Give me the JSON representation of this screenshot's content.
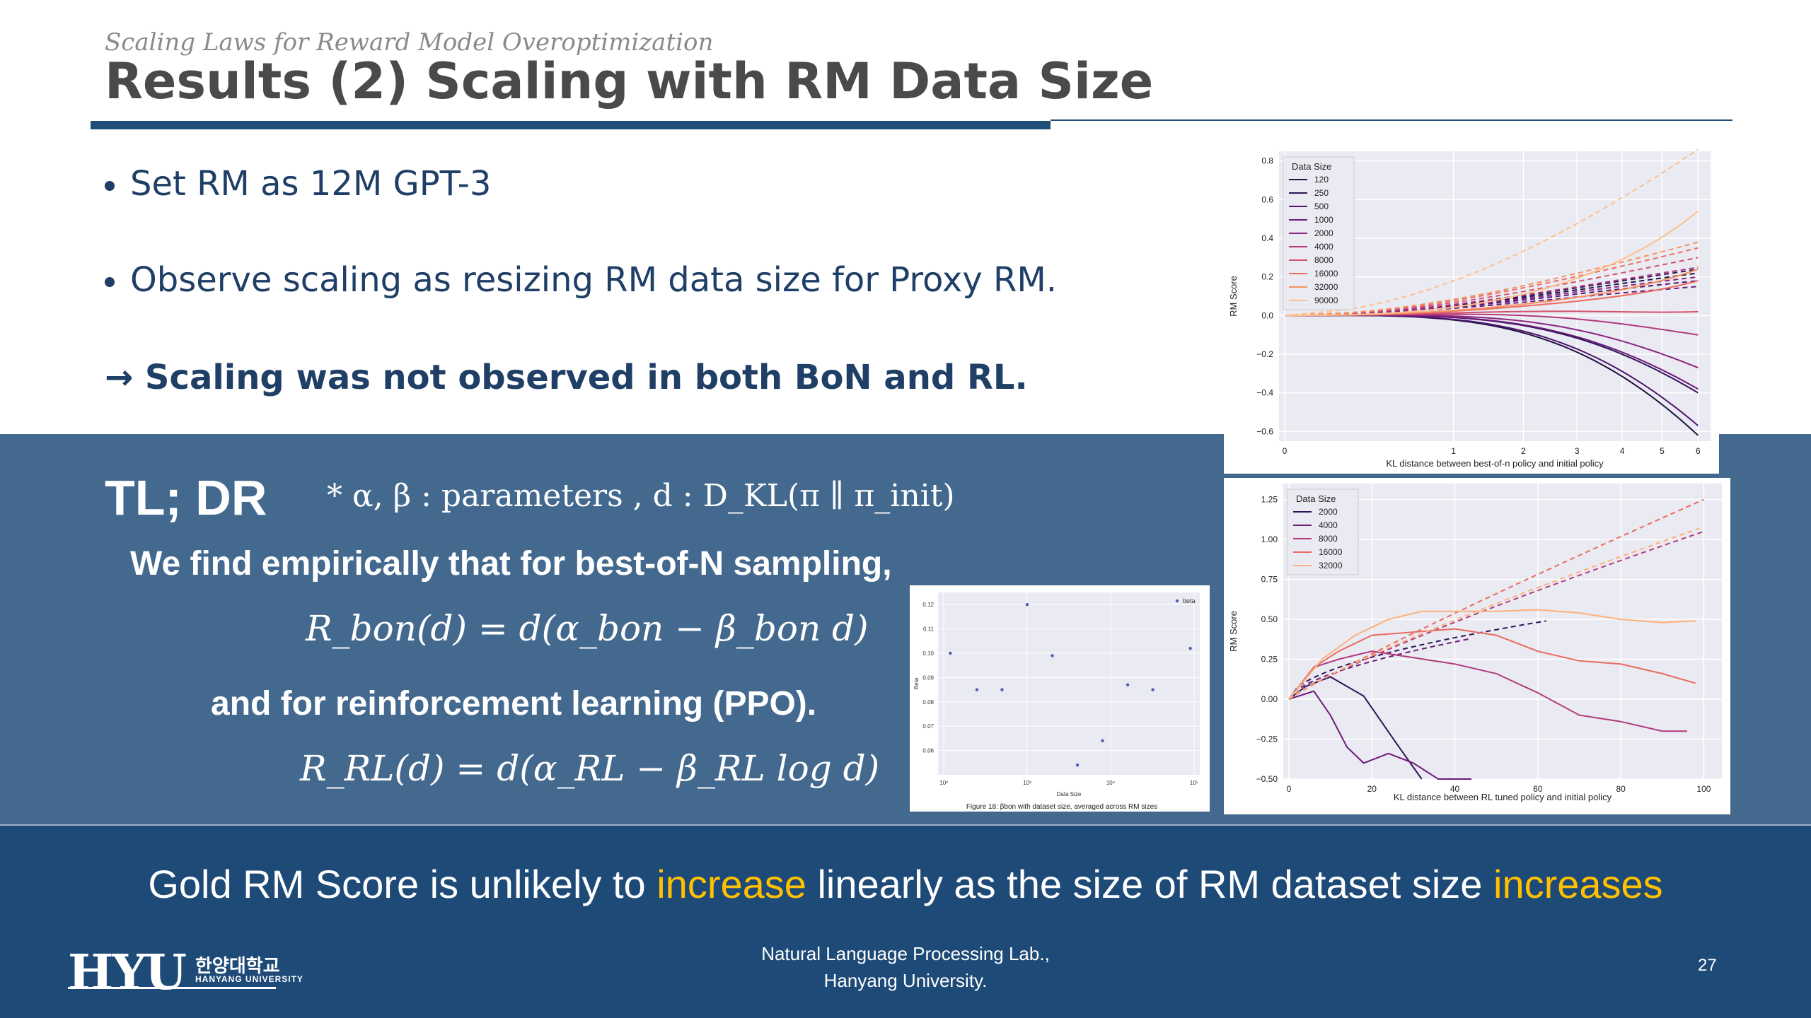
{
  "slide": {
    "subtitle": "Scaling Laws for Reward Model Overoptimization",
    "title": "Results (2) Scaling with RM Data Size",
    "bullets": [
      "Set RM as 12M GPT-3",
      "Observe scaling as resizing RM data size for Proxy RM."
    ],
    "conclusion": "→ Scaling was not observed in both BoN and RL.",
    "tldr_label": "TL; DR",
    "params_note": "* α, β : parameters , d : D_KL(π ∥ π_init)",
    "find_text": "We find empirically that for best-of-N sampling,",
    "eq_bon": "R_bon(d) = d(α_bon − β_bon d)",
    "and_text": "and for reinforcement learning (PPO).",
    "eq_rl": "R_RL(d) = d(α_RL − β_RL log d)",
    "gold_pre": "Gold RM Score is unlikely to ",
    "gold_hl1": "increase",
    "gold_mid": " linearly as the size of RM dataset size ",
    "gold_hl2": "increases",
    "footer_line1": "Natural Language Processing Lab.,",
    "footer_line2": "Hanyang University.",
    "page_number": "27",
    "logo_text": "HYU",
    "logo_kor": "한양대학교",
    "logo_eng": "HANYANG UNIVERSITY"
  },
  "colors": {
    "navy": "#1f4e79",
    "mid_band": "#44698f",
    "bottom_band": "#1e4a77",
    "highlight": "#ffc000"
  },
  "chart_data": [
    {
      "type": "line",
      "title": "",
      "xlabel": "KL distance between best-of-n policy and initial policy",
      "ylabel": "RM Score",
      "x_ticks": [
        "0",
        "1",
        "2",
        "3",
        "4",
        "5",
        "6"
      ],
      "y_ticks": [
        "0.8",
        "0.6",
        "0.4",
        "0.2",
        "0.0",
        "−0.2",
        "−0.4",
        "−0.6"
      ],
      "ylim": [
        -0.65,
        0.85
      ],
      "legend_title": "Data Size",
      "series": [
        {
          "name": "120",
          "color": "#1d1140",
          "gold_end": -0.62,
          "proxy_end": 0.22
        },
        {
          "name": "250",
          "color": "#2f1457",
          "gold_end": -0.4,
          "proxy_end": 0.24
        },
        {
          "name": "500",
          "color": "#4f1470",
          "gold_end": -0.57,
          "proxy_end": 0.18
        },
        {
          "name": "1000",
          "color": "#6d1a7a",
          "gold_end": -0.38,
          "proxy_end": 0.15
        },
        {
          "name": "2000",
          "color": "#8c2580",
          "gold_end": -0.27,
          "proxy_end": 0.2
        },
        {
          "name": "4000",
          "color": "#b23a7c",
          "gold_end": -0.1,
          "proxy_end": 0.25
        },
        {
          "name": "8000",
          "color": "#d3516e",
          "gold_end": 0.02,
          "proxy_end": 0.3
        },
        {
          "name": "16000",
          "color": "#eb6b5f",
          "gold_end": 0.18,
          "proxy_end": 0.35
        },
        {
          "name": "32000",
          "color": "#f7915f",
          "gold_end": 0.24,
          "proxy_end": 0.38
        },
        {
          "name": "90000",
          "color": "#fdc08a",
          "gold_end": 0.54,
          "proxy_end": 0.86
        }
      ]
    },
    {
      "type": "line",
      "title": "",
      "xlabel": "KL distance between RL tuned policy and initial policy",
      "ylabel": "RM Score",
      "x_ticks": [
        "0",
        "20",
        "40",
        "60",
        "80",
        "100"
      ],
      "y_ticks": [
        "1.25",
        "1.00",
        "0.75",
        "0.50",
        "0.25",
        "0.00",
        "−0.25",
        "−0.50"
      ],
      "ylim": [
        -0.5,
        1.35
      ],
      "legend_title": "Data Size",
      "series": [
        {
          "name": "2000",
          "color": "#2f1457"
        },
        {
          "name": "4000",
          "color": "#6d1a7a"
        },
        {
          "name": "8000",
          "color": "#b23a7c"
        },
        {
          "name": "16000",
          "color": "#eb6b5f"
        },
        {
          "name": "32000",
          "color": "#fdb07a"
        }
      ]
    },
    {
      "type": "scatter",
      "title": "",
      "xlabel": "Data Size",
      "ylabel": "Beta",
      "legend": [
        "beta"
      ],
      "caption": "Figure 18: βbon with dataset size, averaged across RM sizes",
      "x_ticks": [
        "10²",
        "10³",
        "10⁴",
        "10⁵"
      ],
      "y_ticks": [
        "0.12",
        "0.11",
        "0.10",
        "0.09",
        "0.08",
        "0.07",
        "0.06"
      ],
      "points": [
        {
          "x": 120,
          "y": 0.1
        },
        {
          "x": 250,
          "y": 0.085
        },
        {
          "x": 500,
          "y": 0.085
        },
        {
          "x": 1000,
          "y": 0.12
        },
        {
          "x": 2000,
          "y": 0.099
        },
        {
          "x": 4000,
          "y": 0.054
        },
        {
          "x": 8000,
          "y": 0.064
        },
        {
          "x": 16000,
          "y": 0.087
        },
        {
          "x": 32000,
          "y": 0.085
        },
        {
          "x": 90000,
          "y": 0.102
        }
      ]
    }
  ]
}
